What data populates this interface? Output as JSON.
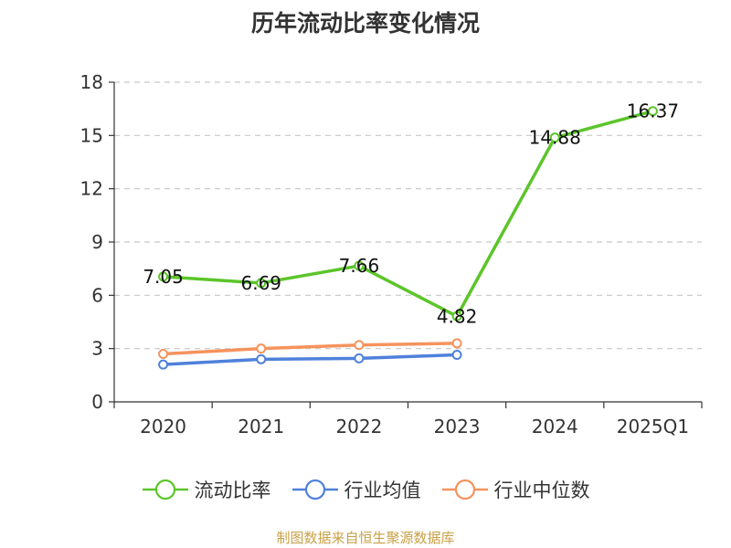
{
  "title": "历年流动比率变化情况",
  "source": "制图数据来自恒生聚源数据库",
  "chart_data": {
    "type": "line",
    "title": "历年流动比率变化情况",
    "categories": [
      "2020",
      "2021",
      "2022",
      "2023",
      "2024",
      "2025Q1"
    ],
    "yticks": [
      "0",
      "3",
      "6",
      "9",
      "12",
      "15",
      "18"
    ],
    "ylim": [
      0,
      18
    ],
    "grid": true,
    "legend_position": "bottom",
    "series": [
      {
        "name": "流动比率",
        "color": "#5cc52a",
        "values": [
          7.05,
          6.69,
          7.66,
          4.82,
          14.88,
          16.37
        ],
        "labels": [
          "7.05",
          "6.69",
          "7.66",
          "4.82",
          "14.88",
          "16.37"
        ]
      },
      {
        "name": "行业均值",
        "color": "#4f81db",
        "values": [
          2.1,
          2.4,
          2.45,
          2.65,
          null,
          null
        ]
      },
      {
        "name": "行业中位数",
        "color": "#f5935d",
        "values": [
          2.7,
          3.0,
          3.2,
          3.3,
          null,
          null
        ]
      }
    ]
  }
}
